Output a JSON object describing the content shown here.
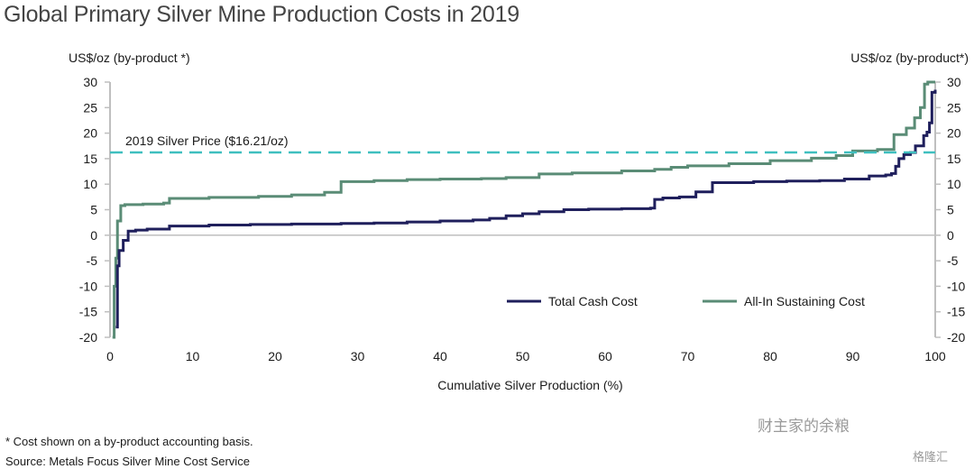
{
  "title": "Global Primary Silver Mine Production Costs in 2019",
  "footnote": "* Cost shown on a by-product accounting basis.",
  "source": "Source: Metals Focus Silver Mine Cost Service",
  "watermark": "财主家的余粮",
  "watermark2": "格隆汇",
  "colors": {
    "total_cash_cost": "#1f1f5c",
    "aisc": "#5a8c76",
    "price_line": "#3fbfbf",
    "axis": "#bfbfbf"
  },
  "chart_data": {
    "type": "line",
    "title": "Global Primary Silver Mine Production Costs in 2019",
    "xlabel": "Cumulative Silver Production (%)",
    "ylabel_left": "US$/oz (by-product *)",
    "ylabel_right": "US$/oz (by-product*)",
    "xlim": [
      0,
      100
    ],
    "ylim": [
      -20,
      30
    ],
    "xticks": [
      0,
      10,
      20,
      30,
      40,
      50,
      60,
      70,
      80,
      90,
      100
    ],
    "yticks": [
      -20,
      -15,
      -10,
      -5,
      0,
      5,
      10,
      15,
      20,
      25,
      30
    ],
    "grid": false,
    "legend_position": "lower-right",
    "step": true,
    "reference_line": {
      "label": "2019 Silver Price ($16.21/oz)",
      "y": 16.21,
      "style": "dashed"
    },
    "series": [
      {
        "name": "Total Cash Cost",
        "x": [
          0.7,
          0.9,
          1.1,
          1.6,
          2.2,
          3.1,
          4.5,
          7.2,
          12,
          17,
          22,
          28,
          32,
          36,
          40,
          44,
          46,
          48,
          50,
          52,
          55,
          58,
          62,
          65.5,
          66,
          67,
          69,
          71,
          73,
          78,
          82,
          86,
          89,
          92,
          94,
          94.7,
          95.2,
          95.6,
          96.2,
          97,
          97.6,
          98.6,
          99,
          99.3,
          99.6,
          100
        ],
        "y": [
          -18,
          -6,
          -3,
          -1,
          0.8,
          1,
          1.2,
          1.8,
          2,
          2.1,
          2.2,
          2.3,
          2.4,
          2.6,
          2.8,
          3,
          3.3,
          3.8,
          4.2,
          4.6,
          5,
          5.1,
          5.2,
          5.3,
          7,
          7.3,
          7.5,
          8.5,
          10.3,
          10.5,
          10.6,
          10.7,
          11,
          11.6,
          11.8,
          12.1,
          13.5,
          15,
          15.8,
          16.2,
          17.5,
          19.5,
          20.2,
          22,
          28,
          28.5
        ]
      },
      {
        "name": "All-In Sustaining Cost",
        "x": [
          0.3,
          0.5,
          0.7,
          0.9,
          1.3,
          1.8,
          4,
          6.5,
          7.2,
          12,
          18,
          22,
          26,
          28,
          32,
          36,
          40,
          45,
          48,
          52,
          56,
          62,
          66,
          68,
          70,
          75,
          80,
          85,
          88,
          90,
          93,
          95,
          96.5,
          97.5,
          98.2,
          98.7,
          99.1,
          100
        ],
        "y": [
          -20,
          -10,
          -4.5,
          2.8,
          5.8,
          6,
          6.1,
          6.3,
          7.2,
          7.4,
          7.6,
          7.9,
          8.4,
          10.5,
          10.7,
          10.9,
          11,
          11.1,
          11.3,
          12,
          12.2,
          12.6,
          12.9,
          13.3,
          13.6,
          14,
          14.6,
          15.1,
          15.6,
          16.5,
          16.8,
          19.7,
          21,
          23,
          25,
          29.6,
          30,
          30
        ]
      }
    ]
  }
}
